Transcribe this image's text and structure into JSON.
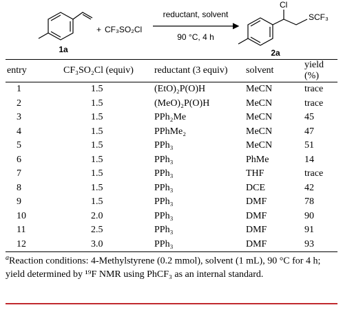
{
  "scheme": {
    "plus": "+",
    "reagent": "CF₃SO₂Cl",
    "conditions_above": "reductant, solvent",
    "conditions_below": "90 °C, 4 h",
    "reactant_label": "1a",
    "product_label": "2a",
    "product_atoms": [
      "Cl",
      "SCF₃"
    ]
  },
  "table": {
    "columns": [
      "entry",
      "CF₃SO₂Cl (equiv)",
      "reductant (3 equiv)",
      "solvent",
      "yield (%)"
    ],
    "rows": [
      [
        "1",
        "1.5",
        "(EtO)₂P(O)H",
        "MeCN",
        "trace"
      ],
      [
        "2",
        "1.5",
        "(MeO)₂P(O)H",
        "MeCN",
        "trace"
      ],
      [
        "3",
        "1.5",
        "PPh₂Me",
        "MeCN",
        "45"
      ],
      [
        "4",
        "1.5",
        "PPhMe₂",
        "MeCN",
        "47"
      ],
      [
        "5",
        "1.5",
        "PPh₃",
        "MeCN",
        "51"
      ],
      [
        "6",
        "1.5",
        "PPh₃",
        "PhMe",
        "14"
      ],
      [
        "7",
        "1.5",
        "PPh₃",
        "THF",
        "trace"
      ],
      [
        "8",
        "1.5",
        "PPh₃",
        "DCE",
        "42"
      ],
      [
        "9",
        "1.5",
        "PPh₃",
        "DMF",
        "78"
      ],
      [
        "10",
        "2.0",
        "PPh₃",
        "DMF",
        "90"
      ],
      [
        "11",
        "2.5",
        "PPh₃",
        "DMF",
        "91"
      ],
      [
        "12",
        "3.0",
        "PPh₃",
        "DMF",
        "93"
      ]
    ]
  },
  "footnote": {
    "marker": "a",
    "text": "Reaction conditions: 4-Methylstyrene (0.2 mmol), solvent (1 mL), 90 °C for 4 h; yield determined by ¹⁹F NMR using PhCF₃ as an internal standard."
  }
}
